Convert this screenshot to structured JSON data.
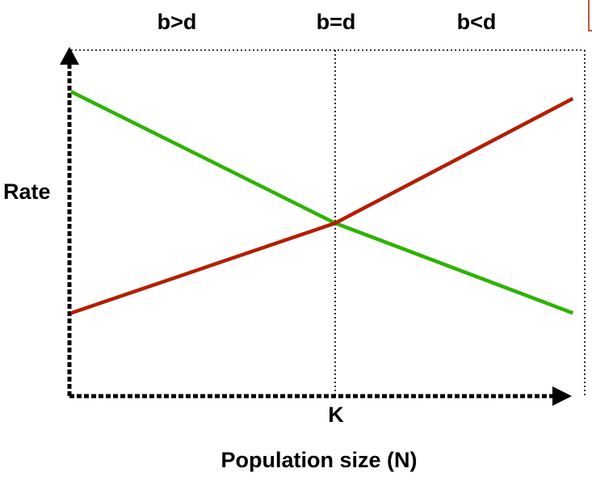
{
  "chart_data": {
    "type": "line",
    "xlabel": "Population size (N)",
    "ylabel": "Rate",
    "x_tick_label": "K",
    "region_labels": [
      "b>d",
      "b=d",
      "b<d"
    ],
    "series": [
      {
        "color": "#2db300",
        "points": [
          [
            0,
            0.88
          ],
          [
            1,
            0.5
          ],
          [
            1.9,
            0.24
          ]
        ]
      },
      {
        "color": "#b31e00",
        "points": [
          [
            0,
            0.24
          ],
          [
            1,
            0.5
          ],
          [
            1.9,
            0.86
          ]
        ]
      }
    ],
    "xlim": [
      0,
      1.92
    ],
    "ylim": [
      0,
      1
    ],
    "grid": false
  }
}
